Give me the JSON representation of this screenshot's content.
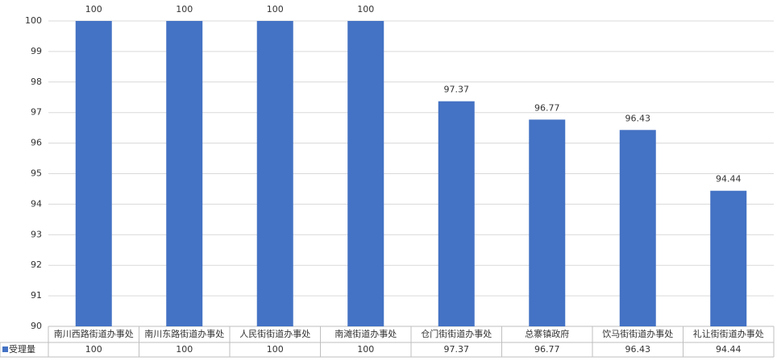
{
  "chart_data": {
    "type": "bar",
    "categories": [
      "南川西路街道办事处",
      "南川东路街道办事处",
      "人民街街道办事处",
      "南滩街道办事处",
      "仓门街街道办事处",
      "总寨镇政府",
      "饮马街街道办事处",
      "礼让街街道办事处"
    ],
    "series": [
      {
        "name": "受理量",
        "color": "#4472c4",
        "values": [
          100,
          100,
          100,
          100,
          97.37,
          96.77,
          96.43,
          94.44
        ]
      }
    ],
    "ylim": [
      90,
      100
    ],
    "yticks": [
      90,
      91,
      92,
      93,
      94,
      95,
      96,
      97,
      98,
      99,
      100
    ],
    "grid": true
  }
}
